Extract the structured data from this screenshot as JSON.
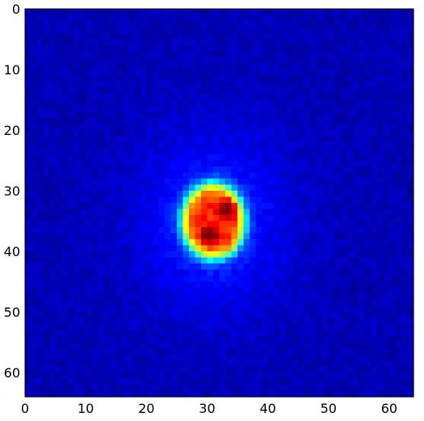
{
  "chart_data": {
    "type": "heatmap",
    "title": "",
    "xlabel": "",
    "ylabel": "",
    "image_size": [
      64,
      64
    ],
    "xlim": [
      0,
      64
    ],
    "ylim": [
      64,
      0
    ],
    "y_axis_inverted": true,
    "colormap": "jet",
    "xticks": [
      0,
      10,
      20,
      30,
      40,
      50,
      60
    ],
    "yticks": [
      0,
      10,
      20,
      30,
      40,
      50,
      60
    ],
    "xtick_labels": [
      "0",
      "10",
      "20",
      "30",
      "40",
      "50",
      "60"
    ],
    "ytick_labels": [
      "0",
      "10",
      "20",
      "30",
      "40",
      "50",
      "60"
    ],
    "background_level": 0.05,
    "features": [
      {
        "kind": "blob",
        "center_x": 31,
        "center_y": 35,
        "radius_x": 5,
        "radius_y": 6,
        "peak": 0.72
      },
      {
        "kind": "hotspot",
        "center_x": 33.5,
        "center_y": 33,
        "peak": 1.0
      },
      {
        "kind": "hotspot",
        "center_x": 30.5,
        "center_y": 37.5,
        "peak": 0.95
      },
      {
        "kind": "hotspot",
        "center_x": 34.5,
        "center_y": 39.5,
        "peak": 0.88
      }
    ],
    "grid": false,
    "legend": "none"
  }
}
